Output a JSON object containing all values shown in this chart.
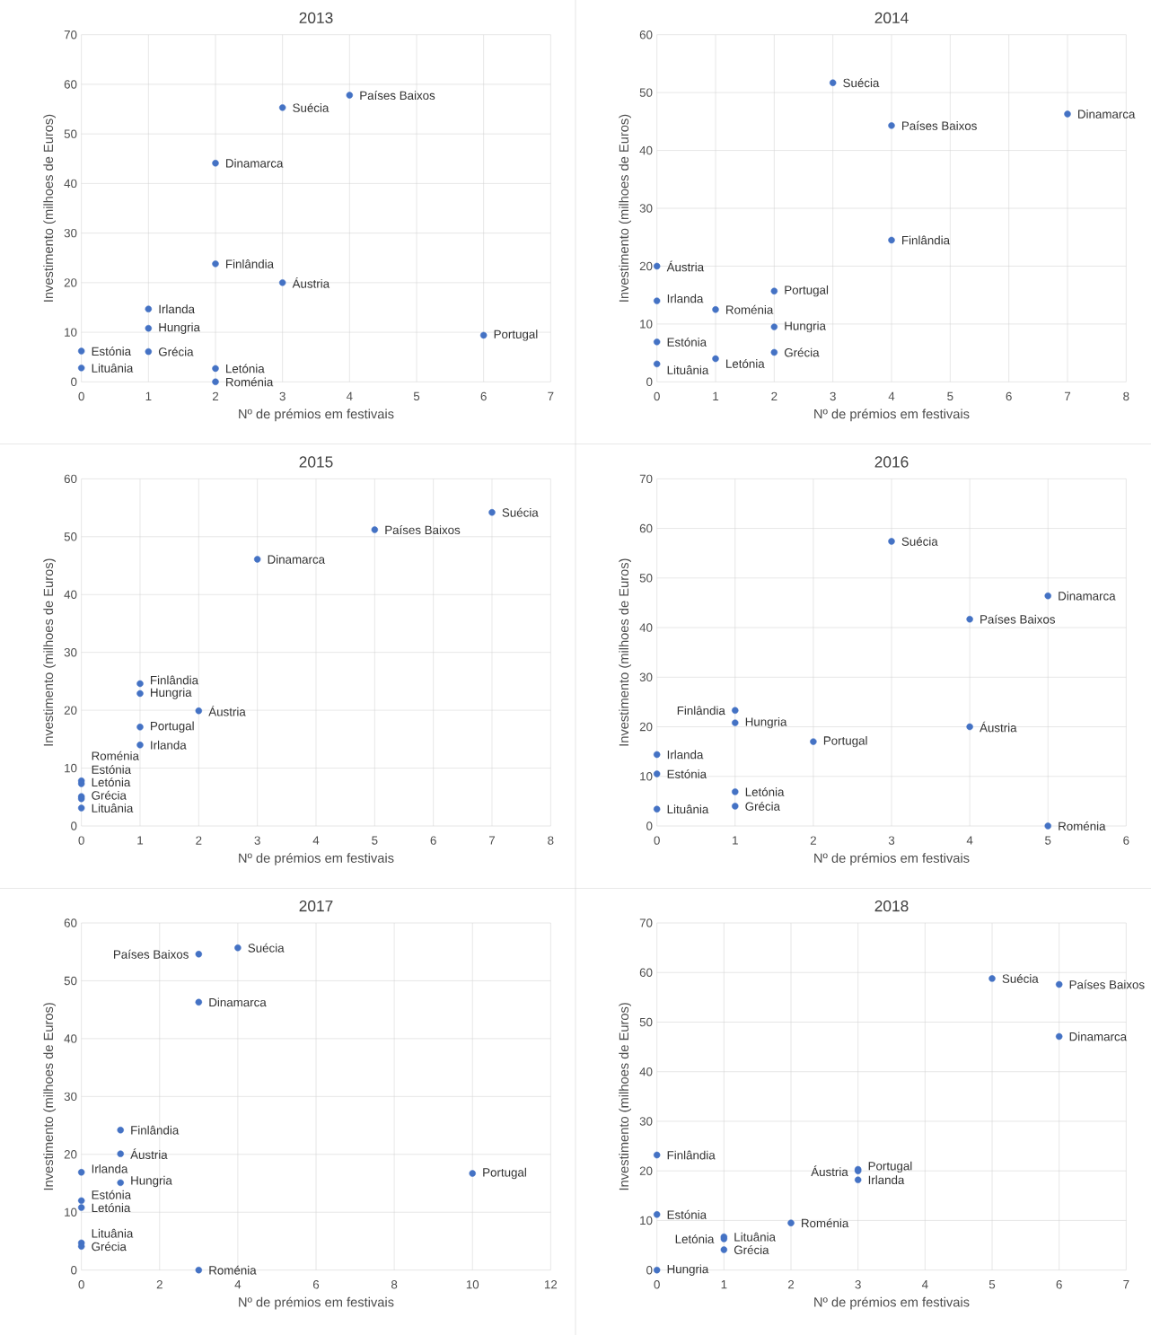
{
  "chart_data": [
    {
      "type": "scatter",
      "title": "2013",
      "xlabel": "Nº de prémios em festivais",
      "ylabel": "Investimento (milhoes de Euros)",
      "xlim": [
        0,
        7
      ],
      "ylim": [
        0,
        70
      ],
      "xticks": [
        0,
        1,
        2,
        3,
        4,
        5,
        6,
        7
      ],
      "yticks": [
        0,
        10,
        20,
        30,
        40,
        50,
        60,
        70
      ],
      "grid": true,
      "marker": "circle",
      "series": [
        {
          "name": "Países Baixos",
          "color": "#4472c4",
          "x": [
            4
          ],
          "values": [
            57.8
          ]
        },
        {
          "name": "Suécia",
          "color": "#4472c4",
          "x": [
            3
          ],
          "values": [
            55.3
          ]
        },
        {
          "name": "Dinamarca",
          "color": "#4472c4",
          "x": [
            2
          ],
          "values": [
            44.1
          ]
        },
        {
          "name": "Finlândia",
          "color": "#4472c4",
          "x": [
            2
          ],
          "values": [
            23.8
          ]
        },
        {
          "name": "Áustria",
          "color": "#4472c4",
          "x": [
            3
          ],
          "values": [
            20.0
          ]
        },
        {
          "name": "Irlanda",
          "color": "#4472c4",
          "x": [
            1
          ],
          "values": [
            14.7
          ]
        },
        {
          "name": "Hungria",
          "color": "#4472c4",
          "x": [
            1
          ],
          "values": [
            10.8
          ]
        },
        {
          "name": "Portugal",
          "color": "#4472c4",
          "x": [
            6
          ],
          "values": [
            9.4
          ]
        },
        {
          "name": "Estónia",
          "color": "#4472c4",
          "x": [
            0
          ],
          "values": [
            6.2
          ]
        },
        {
          "name": "Grécia",
          "color": "#4472c4",
          "x": [
            1
          ],
          "values": [
            6.1
          ]
        },
        {
          "name": "Lituânia",
          "color": "#4472c4",
          "x": [
            0
          ],
          "values": [
            2.8
          ]
        },
        {
          "name": "Letónia",
          "color": "#4472c4",
          "x": [
            2
          ],
          "values": [
            2.7
          ]
        },
        {
          "name": "Roménia",
          "color": "#4472c4",
          "x": [
            2
          ],
          "values": [
            0
          ]
        }
      ]
    },
    {
      "type": "scatter",
      "title": "2014",
      "xlabel": "Nº de prémios em festivais",
      "ylabel": "Investimento (milhoes de Euros)",
      "xlim": [
        0,
        8
      ],
      "ylim": [
        0,
        60
      ],
      "xticks": [
        0,
        1,
        2,
        3,
        4,
        5,
        6,
        7,
        8
      ],
      "yticks": [
        0,
        10,
        20,
        30,
        40,
        50,
        60
      ],
      "grid": true,
      "marker": "circle",
      "series": [
        {
          "name": "Suécia",
          "color": "#4472c4",
          "x": [
            3
          ],
          "values": [
            51.7
          ]
        },
        {
          "name": "Dinamarca",
          "color": "#4472c4",
          "x": [
            7
          ],
          "values": [
            46.3
          ]
        },
        {
          "name": "Países Baixos",
          "color": "#4472c4",
          "x": [
            4
          ],
          "values": [
            44.3
          ]
        },
        {
          "name": "Finlândia",
          "color": "#4472c4",
          "x": [
            4
          ],
          "values": [
            24.5
          ]
        },
        {
          "name": "Áustria",
          "color": "#4472c4",
          "x": [
            0
          ],
          "values": [
            20.0
          ]
        },
        {
          "name": "Portugal",
          "color": "#4472c4",
          "x": [
            2
          ],
          "values": [
            15.7
          ]
        },
        {
          "name": "Irlanda",
          "color": "#4472c4",
          "x": [
            0
          ],
          "values": [
            14.0
          ]
        },
        {
          "name": "Roménia",
          "color": "#4472c4",
          "x": [
            1
          ],
          "values": [
            12.5
          ]
        },
        {
          "name": "Hungria",
          "color": "#4472c4",
          "x": [
            2
          ],
          "values": [
            9.5
          ]
        },
        {
          "name": "Estónia",
          "color": "#4472c4",
          "x": [
            0
          ],
          "values": [
            6.9
          ]
        },
        {
          "name": "Grécia",
          "color": "#4472c4",
          "x": [
            2
          ],
          "values": [
            5.1
          ]
        },
        {
          "name": "Letónia",
          "color": "#4472c4",
          "x": [
            1
          ],
          "values": [
            4.0
          ]
        },
        {
          "name": "Lituânia",
          "color": "#4472c4",
          "x": [
            0
          ],
          "values": [
            3.1
          ]
        }
      ]
    },
    {
      "type": "scatter",
      "title": "2015",
      "xlabel": "Nº de prémios em festivais",
      "ylabel": "Investimento (milhoes de Euros)",
      "xlim": [
        0,
        8
      ],
      "ylim": [
        0,
        60
      ],
      "xticks": [
        0,
        1,
        2,
        3,
        4,
        5,
        6,
        7,
        8
      ],
      "yticks": [
        0,
        10,
        20,
        30,
        40,
        50,
        60
      ],
      "grid": true,
      "marker": "circle",
      "series": [
        {
          "name": "Suécia",
          "color": "#4472c4",
          "x": [
            7
          ],
          "values": [
            54.2
          ]
        },
        {
          "name": "Países Baixos",
          "color": "#4472c4",
          "x": [
            5
          ],
          "values": [
            51.2
          ]
        },
        {
          "name": "Dinamarca",
          "color": "#4472c4",
          "x": [
            3
          ],
          "values": [
            46.1
          ]
        },
        {
          "name": "Finlândia",
          "color": "#4472c4",
          "x": [
            1
          ],
          "values": [
            24.6
          ]
        },
        {
          "name": "Hungria",
          "color": "#4472c4",
          "x": [
            1
          ],
          "values": [
            22.9
          ]
        },
        {
          "name": "Áustria",
          "color": "#4472c4",
          "x": [
            2
          ],
          "values": [
            19.9
          ]
        },
        {
          "name": "Portugal",
          "color": "#4472c4",
          "x": [
            1
          ],
          "values": [
            17.1
          ]
        },
        {
          "name": "Irlanda",
          "color": "#4472c4",
          "x": [
            1
          ],
          "values": [
            14.0
          ]
        },
        {
          "name": "Roménia",
          "color": "#4472c4",
          "x": [
            0
          ],
          "values": [
            7.8
          ]
        },
        {
          "name": "Estónia",
          "color": "#4472c4",
          "x": [
            0
          ],
          "values": [
            7.3
          ]
        },
        {
          "name": "Letónia",
          "color": "#4472c4",
          "x": [
            0
          ],
          "values": [
            5.1
          ]
        },
        {
          "name": "Grécia",
          "color": "#4472c4",
          "x": [
            0
          ],
          "values": [
            4.7
          ]
        },
        {
          "name": "Lituânia",
          "color": "#4472c4",
          "x": [
            0
          ],
          "values": [
            3.1
          ]
        }
      ]
    },
    {
      "type": "scatter",
      "title": "2016",
      "xlabel": "Nº de prémios em festivais",
      "ylabel": "Investimento (milhoes de Euros)",
      "xlim": [
        0,
        6
      ],
      "ylim": [
        0,
        70
      ],
      "xticks": [
        0,
        1,
        2,
        3,
        4,
        5,
        6
      ],
      "yticks": [
        0,
        10,
        20,
        30,
        40,
        50,
        60,
        70
      ],
      "grid": true,
      "marker": "circle",
      "series": [
        {
          "name": "Suécia",
          "color": "#4472c4",
          "x": [
            3
          ],
          "values": [
            57.4
          ]
        },
        {
          "name": "Dinamarca",
          "color": "#4472c4",
          "x": [
            5
          ],
          "values": [
            46.4
          ]
        },
        {
          "name": "Países Baixos",
          "color": "#4472c4",
          "x": [
            4
          ],
          "values": [
            41.7
          ]
        },
        {
          "name": "Finlândia",
          "color": "#4472c4",
          "x": [
            1
          ],
          "values": [
            23.3
          ]
        },
        {
          "name": "Hungria",
          "color": "#4472c4",
          "x": [
            1
          ],
          "values": [
            20.8
          ]
        },
        {
          "name": "Áustria",
          "color": "#4472c4",
          "x": [
            4
          ],
          "values": [
            20.0
          ]
        },
        {
          "name": "Portugal",
          "color": "#4472c4",
          "x": [
            2
          ],
          "values": [
            17.0
          ]
        },
        {
          "name": "Irlanda",
          "color": "#4472c4",
          "x": [
            0
          ],
          "values": [
            14.4
          ]
        },
        {
          "name": "Estónia",
          "color": "#4472c4",
          "x": [
            0
          ],
          "values": [
            10.5
          ]
        },
        {
          "name": "Letónia",
          "color": "#4472c4",
          "x": [
            1
          ],
          "values": [
            6.9
          ]
        },
        {
          "name": "Grécia",
          "color": "#4472c4",
          "x": [
            1
          ],
          "values": [
            4.0
          ]
        },
        {
          "name": "Lituânia",
          "color": "#4472c4",
          "x": [
            0
          ],
          "values": [
            3.4
          ]
        },
        {
          "name": "Roménia",
          "color": "#4472c4",
          "x": [
            5
          ],
          "values": [
            0
          ]
        }
      ]
    },
    {
      "type": "scatter",
      "title": "2017",
      "xlabel": "Nº de prémios em festivais",
      "ylabel": "Investimento (milhoes de Euros)",
      "xlim": [
        0,
        12
      ],
      "ylim": [
        0,
        60
      ],
      "xticks": [
        0,
        2,
        4,
        6,
        8,
        10,
        12
      ],
      "yticks": [
        0,
        10,
        20,
        30,
        40,
        50,
        60
      ],
      "grid": true,
      "marker": "circle",
      "series": [
        {
          "name": "Suécia",
          "color": "#4472c4",
          "x": [
            4
          ],
          "values": [
            55.7
          ]
        },
        {
          "name": "Países Baixos",
          "color": "#4472c4",
          "x": [
            3
          ],
          "values": [
            54.6
          ]
        },
        {
          "name": "Dinamarca",
          "color": "#4472c4",
          "x": [
            3
          ],
          "values": [
            46.3
          ]
        },
        {
          "name": "Finlândia",
          "color": "#4472c4",
          "x": [
            1
          ],
          "values": [
            24.2
          ]
        },
        {
          "name": "Áustria",
          "color": "#4472c4",
          "x": [
            1
          ],
          "values": [
            20.1
          ]
        },
        {
          "name": "Irlanda",
          "color": "#4472c4",
          "x": [
            0
          ],
          "values": [
            16.9
          ]
        },
        {
          "name": "Portugal",
          "color": "#4472c4",
          "x": [
            10
          ],
          "values": [
            16.7
          ]
        },
        {
          "name": "Hungria",
          "color": "#4472c4",
          "x": [
            1
          ],
          "values": [
            15.1
          ]
        },
        {
          "name": "Estónia",
          "color": "#4472c4",
          "x": [
            0
          ],
          "values": [
            12.0
          ]
        },
        {
          "name": "Letónia",
          "color": "#4472c4",
          "x": [
            0
          ],
          "values": [
            10.8
          ]
        },
        {
          "name": "Lituânia",
          "color": "#4472c4",
          "x": [
            0
          ],
          "values": [
            4.7
          ]
        },
        {
          "name": "Grécia",
          "color": "#4472c4",
          "x": [
            0
          ],
          "values": [
            4.1
          ]
        },
        {
          "name": "Roménia",
          "color": "#4472c4",
          "x": [
            3
          ],
          "values": [
            0
          ]
        }
      ]
    },
    {
      "type": "scatter",
      "title": "2018",
      "xlabel": "Nº de prémios em festivais",
      "ylabel": "Investimento (milhoes de Euros)",
      "xlim": [
        0,
        7
      ],
      "ylim": [
        0,
        70
      ],
      "xticks": [
        0,
        1,
        2,
        3,
        4,
        5,
        6,
        7
      ],
      "yticks": [
        0,
        10,
        20,
        30,
        40,
        50,
        60,
        70
      ],
      "grid": true,
      "marker": "circle",
      "series": [
        {
          "name": "Suécia",
          "color": "#4472c4",
          "x": [
            5
          ],
          "values": [
            58.8
          ]
        },
        {
          "name": "Países Baixos",
          "color": "#4472c4",
          "x": [
            6
          ],
          "values": [
            57.6
          ]
        },
        {
          "name": "Dinamarca",
          "color": "#4472c4",
          "x": [
            6
          ],
          "values": [
            47.1
          ]
        },
        {
          "name": "Finlândia",
          "color": "#4472c4",
          "x": [
            0
          ],
          "values": [
            23.2
          ]
        },
        {
          "name": "Portugal",
          "color": "#4472c4",
          "x": [
            3
          ],
          "values": [
            20.3
          ]
        },
        {
          "name": "Áustria",
          "color": "#4472c4",
          "x": [
            3
          ],
          "values": [
            20.0
          ]
        },
        {
          "name": "Irlanda",
          "color": "#4472c4",
          "x": [
            3
          ],
          "values": [
            18.2
          ]
        },
        {
          "name": "Estónia",
          "color": "#4472c4",
          "x": [
            0
          ],
          "values": [
            11.2
          ]
        },
        {
          "name": "Roménia",
          "color": "#4472c4",
          "x": [
            2
          ],
          "values": [
            9.5
          ]
        },
        {
          "name": "Lituânia",
          "color": "#4472c4",
          "x": [
            1
          ],
          "values": [
            6.7
          ]
        },
        {
          "name": "Letónia",
          "color": "#4472c4",
          "x": [
            1
          ],
          "values": [
            6.3
          ]
        },
        {
          "name": "Grécia",
          "color": "#4472c4",
          "x": [
            1
          ],
          "values": [
            4.1
          ]
        },
        {
          "name": "Hungria",
          "color": "#4472c4",
          "x": [
            0
          ],
          "values": [
            0
          ]
        }
      ]
    }
  ]
}
